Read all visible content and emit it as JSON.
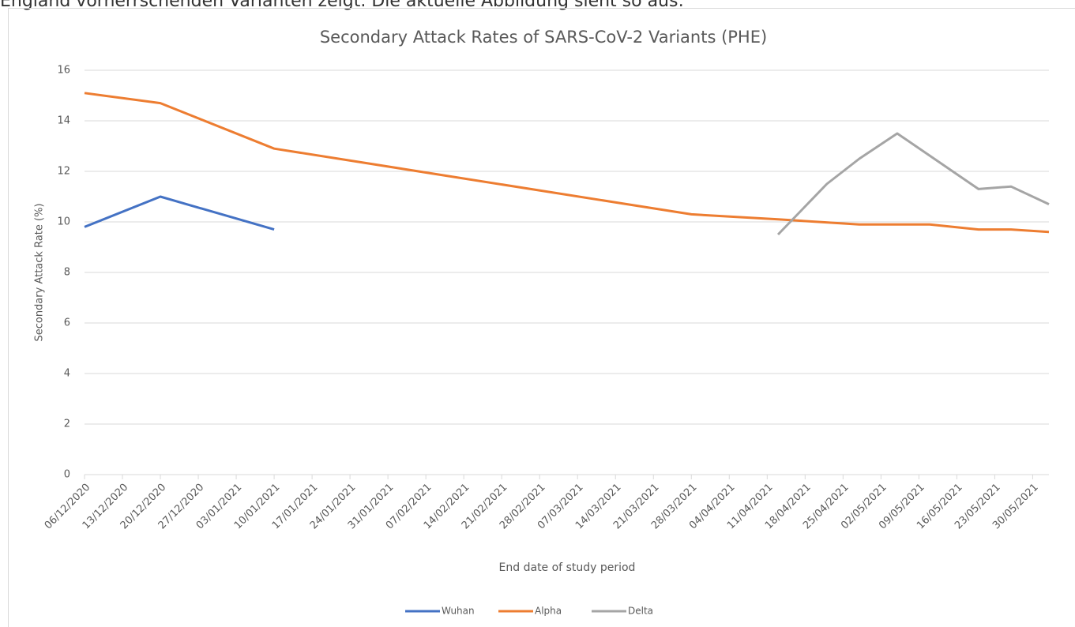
{
  "intro_text": "England vorherrschenden Varianten zeigt. Die aktuelle Abbildung sieht so aus:",
  "chart_data": {
    "type": "line",
    "title": "Secondary Attack Rates of SARS-CoV-2 Variants (PHE)",
    "x_label": "End date of study period",
    "y_label": "Secondary Attack Rate (%)",
    "series": [
      {
        "name": "Wuhan",
        "color": "#4472c4",
        "x": [
          "2020-12-06",
          "2020-12-20",
          "2021-01-10"
        ],
        "values": [
          9.8,
          11.0,
          9.7
        ]
      },
      {
        "name": "Alpha",
        "color": "#ed7d31",
        "x": [
          "2020-12-06",
          "2020-12-20",
          "2021-01-10",
          "2021-03-28",
          "2021-04-13",
          "2021-04-28",
          "2021-05-11",
          "2021-05-20",
          "2021-05-26",
          "2021-06-02"
        ],
        "values": [
          15.1,
          14.7,
          12.9,
          10.3,
          10.1,
          9.9,
          9.9,
          9.7,
          9.7,
          9.6
        ]
      },
      {
        "name": "Delta",
        "color": "#a5a5a5",
        "x": [
          "2021-04-13",
          "2021-04-22",
          "2021-04-28",
          "2021-05-05",
          "2021-05-20",
          "2021-05-26",
          "2021-06-02"
        ],
        "values": [
          9.5,
          11.5,
          12.5,
          13.5,
          11.3,
          11.4,
          10.7
        ]
      }
    ],
    "xlim": [
      "2020-12-06",
      "2021-06-02"
    ],
    "xticks": [
      {
        "value": "2020-12-06",
        "label": "06/12/2020"
      },
      {
        "value": "2020-12-13",
        "label": "13/12/2020"
      },
      {
        "value": "2020-12-20",
        "label": "20/12/2020"
      },
      {
        "value": "2020-12-27",
        "label": "27/12/2020"
      },
      {
        "value": "2021-01-03",
        "label": "03/01/2021"
      },
      {
        "value": "2021-01-10",
        "label": "10/01/2021"
      },
      {
        "value": "2021-01-17",
        "label": "17/01/2021"
      },
      {
        "value": "2021-01-24",
        "label": "24/01/2021"
      },
      {
        "value": "2021-01-31",
        "label": "31/01/2021"
      },
      {
        "value": "2021-02-07",
        "label": "07/02/2021"
      },
      {
        "value": "2021-02-14",
        "label": "14/02/2021"
      },
      {
        "value": "2021-02-21",
        "label": "21/02/2021"
      },
      {
        "value": "2021-02-28",
        "label": "28/02/2021"
      },
      {
        "value": "2021-03-07",
        "label": "07/03/2021"
      },
      {
        "value": "2021-03-14",
        "label": "14/03/2021"
      },
      {
        "value": "2021-03-21",
        "label": "21/03/2021"
      },
      {
        "value": "2021-03-28",
        "label": "28/03/2021"
      },
      {
        "value": "2021-04-04",
        "label": "04/04/2021"
      },
      {
        "value": "2021-04-11",
        "label": "11/04/2021"
      },
      {
        "value": "2021-04-18",
        "label": "18/04/2021"
      },
      {
        "value": "2021-04-25",
        "label": "25/04/2021"
      },
      {
        "value": "2021-05-02",
        "label": "02/05/2021"
      },
      {
        "value": "2021-05-09",
        "label": "09/05/2021"
      },
      {
        "value": "2021-05-16",
        "label": "16/05/2021"
      },
      {
        "value": "2021-05-23",
        "label": "23/05/2021"
      },
      {
        "value": "2021-05-30",
        "label": "30/05/2021"
      }
    ],
    "ylim": [
      0,
      16
    ],
    "yticks": [
      0,
      2,
      4,
      6,
      8,
      10,
      12,
      14,
      16
    ],
    "grid": true,
    "legend": "bottom"
  }
}
